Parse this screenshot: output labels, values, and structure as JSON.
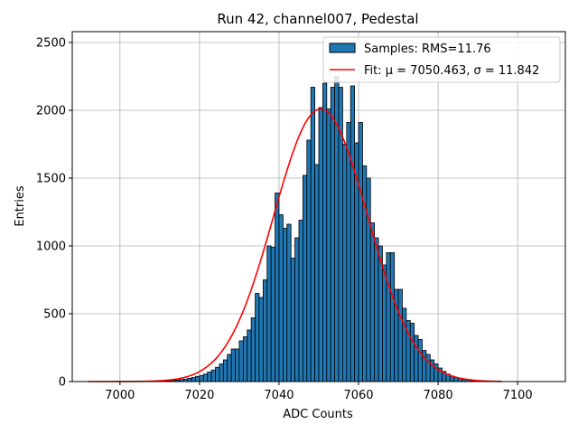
{
  "chart_data": {
    "type": "histogram",
    "title": "Run 42, channel007, Pedestal",
    "xlabel": "ADC Counts",
    "ylabel": "Entries",
    "xlim": [
      6988,
      7112
    ],
    "ylim": [
      0,
      2580
    ],
    "grid": true,
    "xticks": [
      7000,
      7020,
      7040,
      7060,
      7080,
      7100
    ],
    "yticks": [
      0,
      500,
      1000,
      1500,
      2000,
      2500
    ],
    "bin_width": 1,
    "bins": {
      "start": 7004,
      "counts": [
        1,
        1,
        1,
        2,
        2,
        3,
        3,
        5,
        6,
        8,
        11,
        15,
        18,
        24,
        30,
        38,
        45,
        55,
        70,
        85,
        105,
        130,
        160,
        200,
        240,
        240,
        300,
        330,
        380,
        470,
        650,
        620,
        750,
        1000,
        990,
        1390,
        1230,
        1130,
        1160,
        910,
        1060,
        1190,
        1520,
        1780,
        2170,
        1600,
        2020,
        2200,
        2010,
        2170,
        2250,
        2170,
        1750,
        1910,
        2180,
        1760,
        1910,
        1590,
        1500,
        1170,
        1060,
        1000,
        860,
        950,
        950,
        680,
        680,
        540,
        450,
        430,
        340,
        310,
        230,
        200,
        160,
        130,
        100,
        75,
        55,
        40,
        30,
        25,
        15,
        12,
        8,
        6,
        4,
        3,
        2,
        1,
        1
      ]
    },
    "fit": {
      "mu": 7050.463,
      "sigma": 11.842,
      "amplitude": 2010,
      "x_range": [
        6992,
        7096
      ],
      "color": "#ff0000"
    },
    "bar_color": "#1f77b4",
    "legend": {
      "position": "upper right",
      "entries": [
        {
          "label": "Samples: RMS=11.76",
          "kind": "patch"
        },
        {
          "label": "Fit: μ = 7050.463, σ = 11.842",
          "kind": "line"
        }
      ]
    }
  }
}
